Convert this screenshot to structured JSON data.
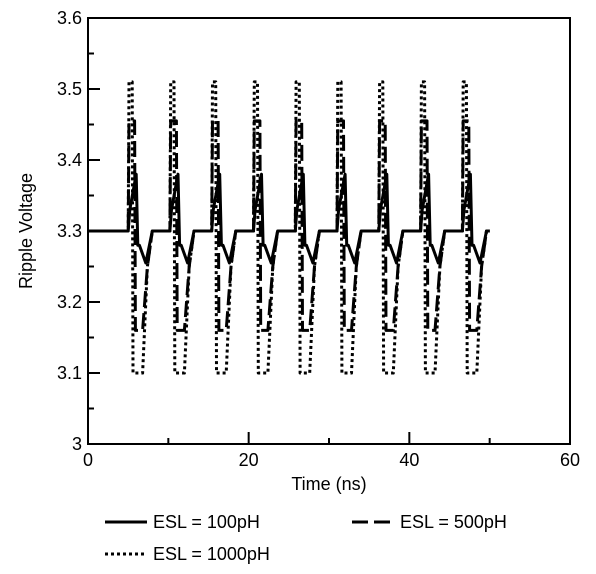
{
  "chart_data": {
    "type": "line",
    "title": "",
    "xlabel": "Time (ns)",
    "ylabel": "Ripple Voltage",
    "xlim": [
      0,
      60
    ],
    "ylim": [
      3.0,
      3.6
    ],
    "xticks": [
      0,
      20,
      40,
      60
    ],
    "yticks": [
      3.0,
      3.1,
      3.2,
      3.3,
      3.4,
      3.5,
      3.6
    ],
    "xtick_labels": [
      "0",
      "20",
      "40",
      "60"
    ],
    "ytick_labels": [
      "3",
      "3.1",
      "3.2",
      "3.3",
      "3.4",
      "3.5",
      "3.6"
    ],
    "grid": false,
    "legend_position": "bottom",
    "colors": {
      "line": "#000000"
    },
    "series": [
      {
        "name": "ESL = 100pH",
        "style": "solid",
        "period_ns": 5.2,
        "pulse_starts_ns": [
          5.0,
          10.2,
          15.4,
          20.6,
          25.8,
          31.0,
          36.2,
          41.4,
          46.6
        ],
        "x": [
          0,
          5.0,
          5.2,
          6.0,
          6.2,
          6.4,
          7.2,
          8.0,
          10.2
        ],
        "y": [
          3.3,
          3.3,
          3.33,
          3.38,
          3.28,
          3.28,
          3.255,
          3.3,
          3.3
        ],
        "x_range": [
          0,
          50
        ]
      },
      {
        "name": "ESL = 500pH",
        "style": "dashed",
        "period_ns": 5.2,
        "pulse_starts_ns": [
          5.0,
          10.2,
          15.4,
          20.6,
          25.8,
          31.0,
          36.2,
          41.4,
          46.6
        ],
        "x": [
          0,
          5.0,
          5.1,
          5.8,
          5.9,
          6.8,
          7.4,
          8.0,
          10.2
        ],
        "y": [
          3.3,
          3.3,
          3.455,
          3.455,
          3.16,
          3.16,
          3.25,
          3.3,
          3.3
        ],
        "x_range": [
          0,
          50
        ]
      },
      {
        "name": "ESL = 1000pH",
        "style": "dotted",
        "period_ns": 5.2,
        "pulse_starts_ns": [
          5.0,
          10.2,
          15.4,
          20.6,
          25.8,
          31.0,
          36.2,
          41.4,
          46.6
        ],
        "x": [
          0,
          5.0,
          5.1,
          5.5,
          5.6,
          6.5,
          6.6,
          6.8,
          7.4,
          8.0,
          10.2
        ],
        "y": [
          3.3,
          3.3,
          3.51,
          3.51,
          3.1,
          3.1,
          3.1,
          3.1,
          3.25,
          3.3,
          3.3
        ],
        "x_range": [
          0,
          50
        ]
      }
    ]
  }
}
